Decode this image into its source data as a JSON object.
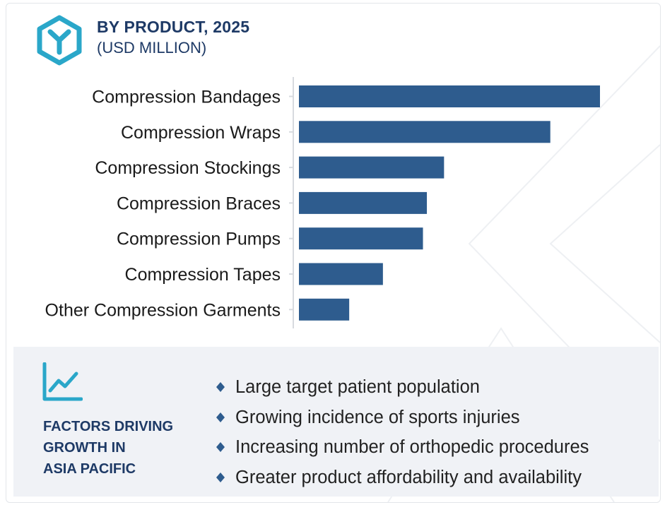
{
  "header": {
    "title": "BY PRODUCT, 2025",
    "subtitle": "(USD MILLION)",
    "logo_icon": "hexagon-y-logo-icon"
  },
  "colors": {
    "bar": "#2e5c8e",
    "title": "#1e3a66",
    "accent": "#2aa7c9",
    "factors_bg": "#f0f2f6"
  },
  "chart_data": {
    "type": "bar",
    "orientation": "horizontal",
    "title": "BY PRODUCT, 2025",
    "subtitle": "(USD MILLION)",
    "categories": [
      "Compression Bandages",
      "Compression Wraps",
      "Compression Stockings",
      "Compression Braces",
      "Compression Pumps",
      "Compression Tapes",
      "Other Compression Garments"
    ],
    "values": [
      100,
      83.5,
      48.2,
      42.5,
      41.2,
      27.9,
      16.7
    ],
    "xlim": [
      0,
      100
    ],
    "value_axis_shown": false,
    "grid": false,
    "legend": "none"
  },
  "factors": {
    "icon": "trend-line-chart-icon",
    "title_lines": [
      "FACTORS DRIVING",
      "GROWTH IN",
      "ASIA PACIFIC"
    ],
    "items": [
      "Large target patient population",
      "Growing incidence of sports injuries",
      "Increasing number of orthopedic procedures",
      "Greater product affordability and availability"
    ],
    "bullet_icon": "diamond-bullet-icon"
  }
}
